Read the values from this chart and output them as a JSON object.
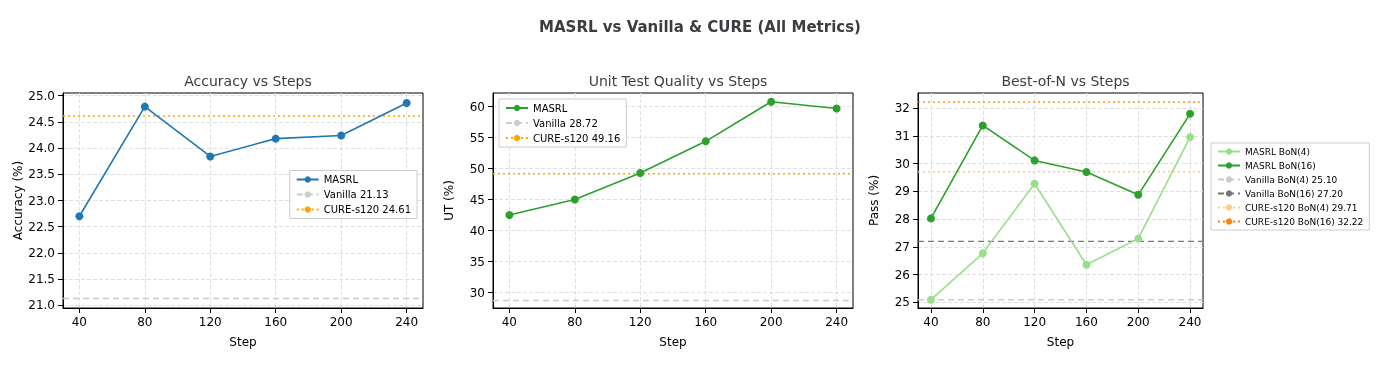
{
  "chart_data": [
    {
      "type": "line",
      "annotations": [
        "MASRL vs Vanilla & CURE (All Metrics)"
      ],
      "title": "Accuracy vs Steps",
      "xlabel": "Step",
      "ylabel": "Accuracy (%)",
      "x": [
        40,
        80,
        120,
        160,
        200,
        240
      ],
      "xlim": [
        30,
        250
      ],
      "xticks": [
        40,
        80,
        120,
        160,
        200,
        240
      ],
      "ylim": [
        20.95,
        25.05
      ],
      "yticks": [
        {
          "value": 21,
          "label": "21.0"
        },
        {
          "value": 21.5,
          "label": "21.5"
        },
        {
          "value": 22,
          "label": "22.0"
        },
        {
          "value": 22.5,
          "label": "22.5"
        },
        {
          "value": 23,
          "label": "23.0"
        },
        {
          "value": 23.5,
          "label": "23.5"
        },
        {
          "value": 24,
          "label": "24.0"
        },
        {
          "value": 24.5,
          "label": "24.5"
        },
        {
          "value": 25,
          "label": "25.0"
        }
      ],
      "grid": true,
      "legend": "center right",
      "marker": "circle",
      "line_style": "solid",
      "series": [
        {
          "name": "MASRL",
          "color": "#1f77b4",
          "values": [
            22.7,
            24.79,
            23.84,
            24.18,
            24.24,
            24.86
          ]
        }
      ],
      "ref_lines": [
        {
          "axis": "y",
          "value": 21.13,
          "label": "Vanilla 21.13",
          "color": "#cccccc",
          "line_style": "dashed"
        },
        {
          "axis": "y",
          "value": 24.61,
          "label": "CURE-s120 24.61",
          "color": "#ffa500",
          "line_style": "dotted"
        }
      ]
    },
    {
      "type": "line",
      "title": "Unit Test Quality vs Steps",
      "xlabel": "Step",
      "ylabel": "UT (%)",
      "x": [
        40,
        80,
        120,
        160,
        200,
        240
      ],
      "xlim": [
        30,
        250
      ],
      "xticks": [
        40,
        80,
        120,
        160,
        200,
        240
      ],
      "ylim": [
        27.5,
        62.2
      ],
      "yticks": [
        30,
        35,
        40,
        45,
        50,
        55,
        60
      ],
      "grid": true,
      "legend": "top left",
      "marker": "circle",
      "line_style": "solid",
      "series": [
        {
          "name": "MASRL",
          "color": "#2ca02c",
          "values": [
            42.5,
            45.0,
            49.3,
            54.4,
            60.8,
            59.7
          ]
        }
      ],
      "ref_lines": [
        {
          "axis": "y",
          "value": 28.72,
          "label": "Vanilla 28.72",
          "color": "#cccccc",
          "line_style": "dashed"
        },
        {
          "axis": "y",
          "value": 49.16,
          "label": "CURE-s120 49.16",
          "color": "#ffa500",
          "line_style": "dotted"
        }
      ]
    },
    {
      "type": "line",
      "title": "Best-of-N vs Steps",
      "xlabel": "Step",
      "ylabel": "Pass (%)",
      "x": [
        40,
        80,
        120,
        160,
        200,
        240
      ],
      "xlim": [
        30,
        250
      ],
      "xticks": [
        40,
        80,
        120,
        160,
        200,
        240
      ],
      "ylim": [
        24.8,
        32.55
      ],
      "yticks": [
        25,
        26,
        27,
        28,
        29,
        30,
        31,
        32
      ],
      "grid": true,
      "legend": "right",
      "marker": "circle",
      "line_style": "solid",
      "series": [
        {
          "name": "MASRL BoN(4)",
          "color": "#98df8a",
          "values": [
            25.1,
            26.77,
            29.28,
            26.36,
            27.3,
            30.96
          ]
        },
        {
          "name": "MASRL BoN(16)",
          "color": "#2ca02c",
          "values": [
            28.03,
            31.38,
            30.12,
            29.7,
            28.88,
            31.8
          ]
        }
      ],
      "ref_lines": [
        {
          "axis": "y",
          "value": 25.1,
          "label": "Vanilla BoN(4) 25.10",
          "color": "#cccccc",
          "line_style": "dashed"
        },
        {
          "axis": "y",
          "value": 27.2,
          "label": "Vanilla BoN(16) 27.20",
          "color": "#777777",
          "line_style": "dashed"
        },
        {
          "axis": "y",
          "value": 29.71,
          "label": "CURE-s120 BoN(4) 29.71",
          "color": "#ffcc88",
          "line_style": "dotted"
        },
        {
          "axis": "y",
          "value": 32.22,
          "label": "CURE-s120 BoN(16) 32.22",
          "color": "#ff7f0e",
          "line_style": "dotted"
        }
      ]
    }
  ]
}
